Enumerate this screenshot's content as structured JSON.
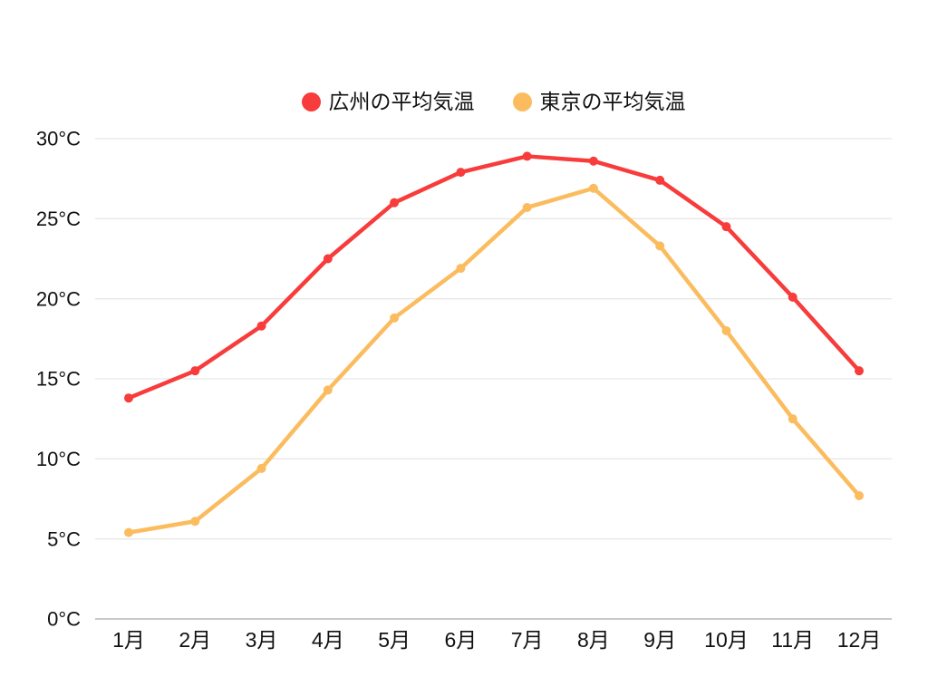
{
  "legend": {
    "items": [
      {
        "label": "広州の平均気温",
        "color": "#f83b3b"
      },
      {
        "label": "東京の平均気温",
        "color": "#fbbc5f"
      }
    ]
  },
  "chart_data": {
    "type": "line",
    "categories": [
      "1月",
      "2月",
      "3月",
      "4月",
      "5月",
      "6月",
      "7月",
      "8月",
      "9月",
      "10月",
      "11月",
      "12月"
    ],
    "series": [
      {
        "name": "広州の平均気温",
        "color": "#f83b3b",
        "values": [
          13.8,
          15.5,
          18.3,
          22.5,
          26.0,
          27.9,
          28.9,
          28.6,
          27.4,
          24.5,
          20.1,
          15.5
        ]
      },
      {
        "name": "東京の平均気温",
        "color": "#fbbc5f",
        "values": [
          5.4,
          6.1,
          9.4,
          14.3,
          18.8,
          21.9,
          25.7,
          26.9,
          23.3,
          18.0,
          12.5,
          7.7
        ]
      }
    ],
    "title": "",
    "xlabel": "",
    "ylabel": "",
    "ylim": [
      0,
      30
    ],
    "ytick_step": 5,
    "yticks": [
      "0°C",
      "5°C",
      "10°C",
      "15°C",
      "20°C",
      "25°C",
      "30°C"
    ],
    "grid": "horizontal",
    "legend_position": "top-center"
  },
  "colors": {
    "background": "#ffffff",
    "gridline": "#e7e7e7",
    "axis_line": "#c9c9c9",
    "text": "#111111"
  }
}
